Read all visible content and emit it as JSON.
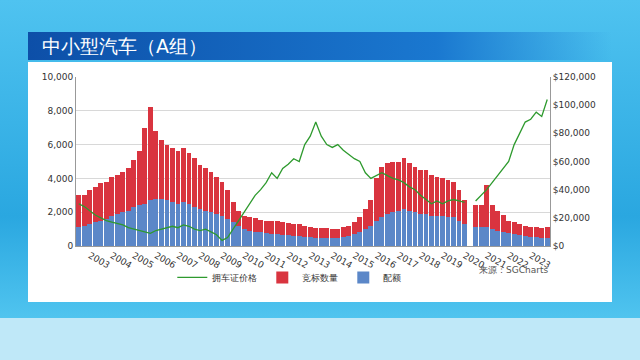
{
  "chart_data": {
    "type": "bar",
    "title": "中小型汽车（A组）",
    "source": "来源：SGCharts",
    "stacked": true,
    "grid": true,
    "legend": "bottom",
    "categories": [
      null,
      null,
      "2003",
      null,
      null,
      null,
      "2004",
      null,
      null,
      null,
      "2005",
      null,
      null,
      null,
      "2006",
      null,
      null,
      null,
      "2007",
      null,
      null,
      null,
      "2008",
      null,
      null,
      null,
      "2009",
      null,
      null,
      null,
      "2010",
      null,
      null,
      null,
      "2011",
      null,
      null,
      null,
      "2012",
      null,
      null,
      null,
      "2013",
      null,
      null,
      null,
      "2014",
      null,
      null,
      null,
      "2015",
      null,
      null,
      null,
      "2016",
      null,
      null,
      null,
      "2017",
      null,
      null,
      null,
      "2018",
      null,
      null,
      null,
      "2019",
      null,
      null,
      null,
      "2020",
      null,
      null,
      null,
      "2021",
      null,
      null,
      null,
      "2022",
      null,
      null,
      null,
      "2023",
      null,
      null,
      null
    ],
    "ylim": [
      0,
      10000
    ],
    "yticks": [
      0,
      {
        "value": 2000,
        "label": "2,000"
      },
      {
        "value": 4000,
        "label": "4,000"
      },
      {
        "value": 6000,
        "label": "6,000"
      },
      {
        "value": 8000,
        "label": "8,000"
      },
      {
        "value": 10000,
        "label": "10,000"
      }
    ],
    "y2lim": [
      0,
      120000
    ],
    "y2ticks": [
      {
        "value": 0,
        "label": "$0"
      },
      {
        "value": 20000,
        "label": "$20,000"
      },
      {
        "value": 40000,
        "label": "$40,000"
      },
      {
        "value": 60000,
        "label": "$60,000"
      },
      {
        "value": 80000,
        "label": "$80,000"
      },
      {
        "value": 100000,
        "label": "$100,000"
      },
      {
        "value": 120000,
        "label": "$120,000"
      }
    ],
    "series": [
      {
        "name": "配额",
        "type": "bar",
        "color": "#5b87c8",
        "values": [
          1100,
          1200,
          1300,
          1400,
          1500,
          1600,
          1800,
          1900,
          2000,
          2100,
          2300,
          2400,
          2500,
          2700,
          2800,
          2800,
          2700,
          2600,
          2500,
          2600,
          2500,
          2300,
          2200,
          2100,
          2000,
          1900,
          1800,
          1600,
          1400,
          1200,
          1000,
          900,
          850,
          800,
          750,
          700,
          700,
          650,
          650,
          600,
          600,
          550,
          550,
          500,
          500,
          500,
          500,
          500,
          550,
          600,
          700,
          800,
          1000,
          1200,
          1500,
          1700,
          1900,
          2000,
          2100,
          2200,
          2100,
          2000,
          1900,
          1900,
          1800,
          1800,
          1800,
          1700,
          1700,
          1500,
          1300,
          null,
          1100,
          1100,
          1100,
          1000,
          900,
          850,
          750,
          700,
          650,
          600,
          550,
          550,
          500,
          500
        ]
      },
      {
        "name": "竞标数量",
        "type": "bar",
        "color": "#d9343f",
        "values": [
          1900,
          1800,
          2000,
          2100,
          2200,
          2200,
          2300,
          2300,
          2400,
          2500,
          2800,
          3200,
          4500,
          5500,
          4000,
          3500,
          3300,
          3200,
          3100,
          3200,
          3000,
          2900,
          2600,
          2500,
          2400,
          2200,
          2000,
          1700,
          1200,
          900,
          800,
          800,
          800,
          750,
          750,
          800,
          800,
          750,
          700,
          700,
          700,
          650,
          600,
          550,
          550,
          550,
          500,
          500,
          550,
          600,
          700,
          900,
          1200,
          1500,
          2500,
          3000,
          3000,
          3000,
          2900,
          3000,
          2800,
          2700,
          2600,
          2600,
          2400,
          2300,
          2200,
          2200,
          2100,
          1800,
          1400,
          null,
          1300,
          1300,
          2500,
          1400,
          1200,
          1000,
          700,
          700,
          650,
          600,
          600,
          600,
          550,
          650
        ]
      },
      {
        "name": "拥车证价格",
        "type": "line",
        "axis": "y2",
        "color": "#2e9a2e",
        "values": [
          30000,
          28000,
          25000,
          22000,
          20000,
          18000,
          17000,
          16000,
          15000,
          13000,
          12000,
          11000,
          10000,
          9000,
          11000,
          12000,
          13000,
          14000,
          13000,
          15000,
          14000,
          12000,
          11000,
          12000,
          10000,
          8000,
          4000,
          6000,
          12000,
          18000,
          24000,
          30000,
          36000,
          40000,
          45000,
          52000,
          48000,
          55000,
          58000,
          62000,
          60000,
          72000,
          78000,
          88000,
          78000,
          72000,
          70000,
          72000,
          68000,
          65000,
          62000,
          60000,
          52000,
          48000,
          50000,
          52000,
          50000,
          48000,
          47000,
          45000,
          42000,
          40000,
          36000,
          33000,
          30000,
          32000,
          30000,
          32000,
          33000,
          32000,
          31000,
          null,
          32000,
          36000,
          40000,
          45000,
          50000,
          55000,
          60000,
          72000,
          80000,
          88000,
          90000,
          95000,
          92000,
          104000
        ]
      }
    ]
  }
}
